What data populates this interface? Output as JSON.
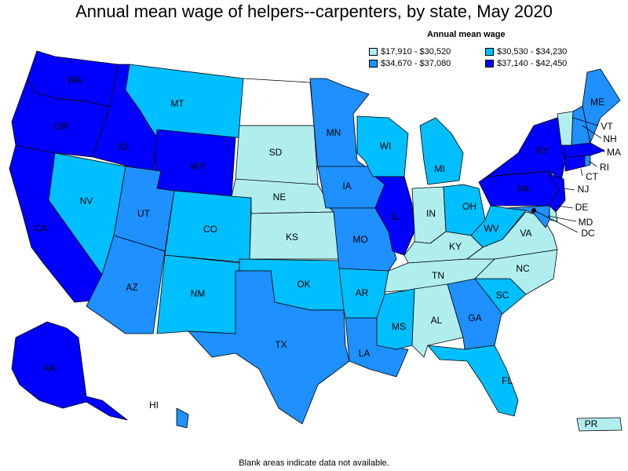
{
  "title": "Annual mean wage of helpers--carpenters, by state, May 2020",
  "legend": {
    "title": "Annual mean wage",
    "items": [
      {
        "label": "$17,910 - $30,520",
        "color": "#b0eeee"
      },
      {
        "label": "$30,530 - $34,230",
        "color": "#00bfff"
      },
      {
        "label": "$34,670 - $37,080",
        "color": "#1e90ff"
      },
      {
        "label": "$37,140 - $42,450",
        "color": "#0000ff"
      }
    ]
  },
  "colors": {
    "band1": "#b0eeee",
    "band2": "#00bfff",
    "band3": "#1e90ff",
    "band4": "#0000ff",
    "no_data": "#ffffff"
  },
  "states": {
    "WA": "band4",
    "OR": "band4",
    "CA": "band4",
    "ID": "band4",
    "WY": "band4",
    "AK": "band4",
    "NY": "band4",
    "PA": "band4",
    "NJ": "band4",
    "MA": "band4",
    "CT": "band4",
    "IL": "band4",
    "MT": "band2",
    "NV": "band2",
    "CO": "band2",
    "NM": "band2",
    "WI": "band2",
    "MI": "band2",
    "OH": "band2",
    "OK": "band2",
    "AR": "band2",
    "MS": "band2",
    "SC": "band2",
    "FL": "band2",
    "WV": "band2",
    "HI": "band3",
    "UT": "band3",
    "AZ": "band3",
    "TX": "band3",
    "MN": "band3",
    "IA": "band3",
    "MO": "band3",
    "LA": "band3",
    "GA": "band3",
    "ME": "band3",
    "MD": "band3",
    "NH": "band3",
    "RI": "band3",
    "SD": "band1",
    "NE": "band1",
    "KS": "band1",
    "IN": "band1",
    "KY": "band1",
    "TN": "band1",
    "AL": "band1",
    "NC": "band1",
    "VA": "band1",
    "VT": "band1",
    "DE": "band1",
    "PR": "band1",
    "ND": "no_data"
  },
  "state_labels": {
    "WA": "WA",
    "OR": "OR",
    "CA": "CA",
    "ID": "ID",
    "NV": "NV",
    "MT": "MT",
    "WY": "WY",
    "UT": "UT",
    "AZ": "AZ",
    "CO": "CO",
    "NM": "NM",
    "SD": "SD",
    "NE": "NE",
    "KS": "KS",
    "OK": "OK",
    "TX": "TX",
    "MN": "MN",
    "IA": "IA",
    "MO": "MO",
    "AR": "AR",
    "LA": "LA",
    "WI": "WI",
    "IL": "IL",
    "MI": "MI",
    "IN": "IN",
    "OH": "OH",
    "KY": "KY",
    "TN": "TN",
    "MS": "MS",
    "AL": "AL",
    "GA": "GA",
    "FL": "FL",
    "SC": "SC",
    "NC": "NC",
    "VA": "VA",
    "WV": "WV",
    "PA": "PA",
    "NY": "NY",
    "ME": "ME",
    "AK": "AK",
    "HI": "HI",
    "PR": "PR",
    "VT": "VT",
    "NH": "NH",
    "MA": "MA",
    "RI": "RI",
    "CT": "CT",
    "NJ": "NJ",
    "DE": "DE",
    "MD": "MD",
    "DC": "DC"
  },
  "footnote": "Blank areas indicate data not available."
}
